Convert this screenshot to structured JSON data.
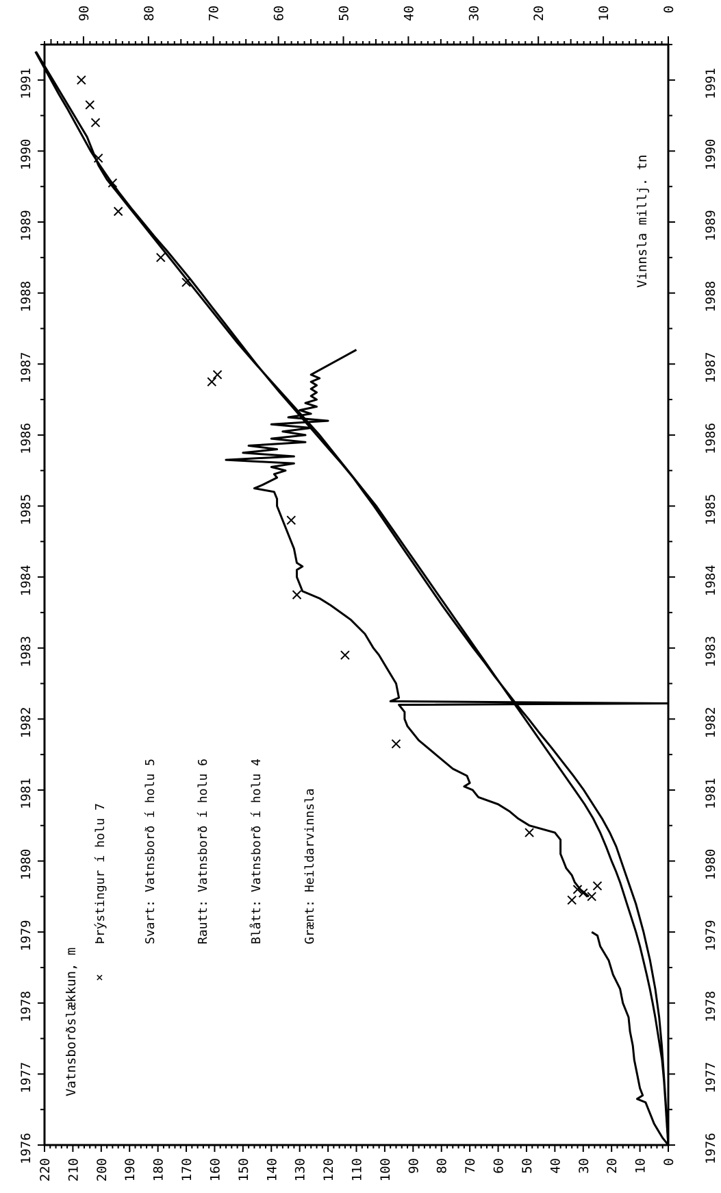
{
  "chart_data": {
    "type": "line",
    "title": "",
    "xlabel": "",
    "ylabel": "Vatnsborðslækkun, m",
    "y2label": "Vinnsla millj. tn",
    "x_ticks": [
      "1976",
      "1977",
      "1978",
      "1979",
      "1980",
      "1981",
      "1982",
      "1983",
      "1984",
      "1985",
      "1986",
      "1987",
      "1988",
      "1989",
      "1990",
      "1991"
    ],
    "xlim": [
      1976,
      1991.5
    ],
    "ylim": [
      0,
      220
    ],
    "y_ticks": [
      "0",
      "10",
      "20",
      "30",
      "40",
      "50",
      "60",
      "70",
      "80",
      "90",
      "100",
      "110",
      "120",
      "130",
      "140",
      "150",
      "160",
      "170",
      "180",
      "190",
      "200",
      "210",
      "220"
    ],
    "y2lim": [
      0,
      96
    ],
    "y2_ticks": [
      "0",
      "10",
      "20",
      "30",
      "40",
      "50",
      "60",
      "70",
      "80",
      "90"
    ],
    "legend": {
      "marker_label": "Þrýstingur í holu 7",
      "entries": [
        "Svart:  Vatnsborð í holu 5",
        "Rautt:  Vatnsborð í holu 6",
        "Blått:  Vatnsborð í holu 4",
        "Grænt:  Heildarvinnsla"
      ]
    },
    "series": [
      {
        "axis": "left",
        "marker": "line",
        "x": [
          1976.0,
          1976.3,
          1976.6,
          1976.9,
          1977.2,
          1977.4,
          1977.6,
          1977.8,
          1978.0,
          1978.2,
          1978.4,
          1978.6,
          1978.8,
          1979.0,
          1979.2,
          1979.4,
          1979.55,
          1979.7,
          1979.85,
          1980.0,
          1980.2,
          1980.4,
          1980.6,
          1980.8,
          1981.0,
          1981.2,
          1981.4,
          1981.6,
          1981.8,
          1982.0,
          1982.2,
          1982.4,
          1982.6,
          1982.8,
          1983.0,
          1983.2,
          1983.4,
          1983.6,
          1983.8,
          1984.0,
          1984.2,
          1984.4,
          1984.6,
          1984.8,
          1985.0,
          1985.2,
          1985.4,
          1985.6,
          1985.8,
          1986.0,
          1986.2,
          1986.4,
          1986.6,
          1986.8,
          1987.0,
          1987.3,
          1987.6,
          1987.9,
          1988.2,
          1988.5,
          1988.8,
          1989.0,
          1989.2,
          1989.4,
          1989.6,
          1989.8,
          1990.0,
          1990.2,
          1990.4,
          1990.6,
          1990.8,
          1991.0,
          1991.2,
          1991.4
        ],
        "values": [
          0,
          0.5,
          1,
          1.5,
          2.2,
          3,
          3.8,
          4.6,
          5.5,
          6.5,
          7.6,
          8.8,
          10,
          11.4,
          13,
          14.6,
          15.8,
          17,
          18.4,
          20,
          21.9,
          24,
          26.5,
          29.5,
          33,
          36.5,
          40,
          43.5,
          47,
          50.5,
          54,
          57.5,
          61,
          64.5,
          68,
          71.5,
          75,
          78.5,
          82,
          85.5,
          89,
          92.5,
          96,
          99.5,
          103,
          107,
          111,
          115,
          119,
          123,
          127.5,
          132,
          136.5,
          141,
          145.5,
          152,
          158,
          164,
          170,
          176,
          182,
          186,
          190,
          194,
          198,
          201,
          203,
          205,
          208,
          211,
          214,
          217,
          220,
          223
        ]
      },
      {
        "axis": "left",
        "marker": "line",
        "x": [
          1976.0,
          1976.1,
          1976.2,
          1976.3,
          1976.4,
          1976.5,
          1976.6,
          1976.65,
          1976.7,
          1976.8,
          1977.0,
          1977.2,
          1977.4,
          1977.6,
          1977.8,
          1978.0,
          1978.2,
          1978.4,
          1978.6,
          1978.8,
          1978.95,
          1979.0
        ],
        "values": [
          0,
          2,
          3.5,
          5,
          6,
          7,
          8,
          11,
          9,
          10,
          11,
          12,
          12.5,
          13.5,
          14,
          16,
          17,
          19.5,
          21,
          24,
          25,
          27
        ]
      },
      {
        "axis": "left",
        "marker": "line",
        "x": [
          1979.5,
          1979.6,
          1979.7,
          1979.8,
          1979.9,
          1980.0,
          1980.1,
          1980.2,
          1980.3,
          1980.4,
          1980.5,
          1980.6,
          1980.7,
          1980.8,
          1980.9,
          1981.0,
          1981.05,
          1981.1,
          1981.2,
          1981.3,
          1981.5,
          1981.7,
          1981.9,
          1982.0,
          1982.1,
          1982.15,
          1982.2,
          1982.22,
          1982.25,
          1982.3,
          1982.5,
          1982.7,
          1982.9,
          1983.0,
          1983.2,
          1983.4,
          1983.6,
          1983.7,
          1983.8,
          1984.0,
          1984.1,
          1984.15,
          1984.2,
          1984.4,
          1984.6,
          1984.8,
          1985.0,
          1985.1,
          1985.2,
          1985.25,
          1985.3,
          1985.4,
          1985.45,
          1985.5,
          1985.55,
          1985.6,
          1985.65,
          1985.7,
          1985.75,
          1985.8,
          1985.85,
          1985.9,
          1985.95,
          1986.0,
          1986.05,
          1986.1,
          1986.15,
          1986.2,
          1986.25,
          1986.3,
          1986.35,
          1986.4,
          1986.45,
          1986.5,
          1986.55,
          1986.6,
          1986.65,
          1986.7,
          1986.75,
          1986.8,
          1986.85,
          1987.2
        ],
        "values": [
          28,
          31,
          33,
          34,
          36,
          37,
          38,
          38,
          38,
          40,
          49,
          53,
          56,
          60,
          67,
          69,
          72,
          70,
          71,
          76,
          82,
          88,
          92,
          93,
          93,
          94,
          95,
          0,
          98,
          95,
          96,
          99,
          102,
          104,
          107,
          112,
          119,
          123,
          129,
          131,
          131,
          129,
          131,
          132,
          134,
          136,
          138,
          138,
          139,
          146,
          143,
          138,
          139,
          135,
          140,
          132,
          156,
          132,
          150,
          138,
          148,
          128,
          140,
          128,
          136,
          126,
          140,
          120,
          134,
          126,
          130,
          124,
          128,
          124,
          126,
          124,
          126,
          124,
          126,
          123,
          126,
          110
        ]
      },
      {
        "axis": "right",
        "marker": "line",
        "x": [
          1976.0,
          1976.3,
          1976.6,
          1977.0,
          1977.4,
          1977.8,
          1978.2,
          1978.6,
          1979.0,
          1979.4,
          1979.8,
          1980.2,
          1980.4,
          1980.6,
          1980.8,
          1981.0,
          1981.2,
          1981.4,
          1981.6,
          1981.8,
          1982.0,
          1982.2,
          1982.4,
          1982.6,
          1982.8,
          1983.0,
          1983.2,
          1983.4,
          1983.6,
          1983.8,
          1984.0,
          1984.2,
          1984.4,
          1984.6,
          1984.8,
          1985.0,
          1985.2,
          1985.4,
          1985.6,
          1985.8,
          1986.0,
          1986.2,
          1986.4,
          1986.6,
          1986.8,
          1987.0,
          1987.2,
          1987.4,
          1987.6,
          1987.8,
          1988.0,
          1988.2,
          1988.4,
          1988.6,
          1988.8,
          1989.0,
          1989.2,
          1989.4,
          1989.6,
          1989.8,
          1990.0,
          1990.2,
          1990.4,
          1990.6,
          1990.8,
          1991.0,
          1991.2,
          1991.4
        ],
        "values": [
          0,
          0.2,
          0.4,
          0.7,
          1.0,
          1.4,
          2.0,
          2.8,
          3.8,
          5.0,
          6.5,
          8.0,
          9.0,
          10.2,
          11.6,
          13.0,
          14.6,
          16.3,
          18.0,
          19.8,
          21.5,
          23.3,
          25.0,
          26.7,
          28.3,
          30.0,
          31.6,
          33.2,
          34.8,
          36.3,
          37.8,
          39.3,
          40.8,
          42.3,
          43.8,
          45.3,
          46.9,
          48.5,
          50.3,
          52.2,
          54.1,
          56.0,
          57.9,
          59.8,
          61.6,
          63.4,
          65.1,
          66.8,
          68.5,
          70.2,
          71.9,
          73.6,
          75.4,
          77.2,
          79.1,
          80.9,
          82.7,
          84.4,
          86.0,
          87.5,
          88.9,
          90.1,
          91.3,
          92.5,
          93.8,
          95.0,
          96.2,
          97.4
        ]
      },
      {
        "axis": "left",
        "marker": "x",
        "x": [
          1979.45,
          1979.5,
          1979.55,
          1979.6,
          1979.65,
          1980.4,
          1981.65,
          1982.9,
          1983.75,
          1984.8,
          1986.75,
          1986.85,
          1988.15,
          1988.5,
          1989.15,
          1989.55,
          1989.9,
          1990.4,
          1990.65,
          1991.0
        ],
        "values": [
          34,
          27,
          30,
          32,
          25,
          49,
          96,
          114,
          131,
          133,
          161,
          159,
          170,
          179,
          194,
          196,
          201,
          202,
          204,
          207
        ]
      }
    ]
  }
}
